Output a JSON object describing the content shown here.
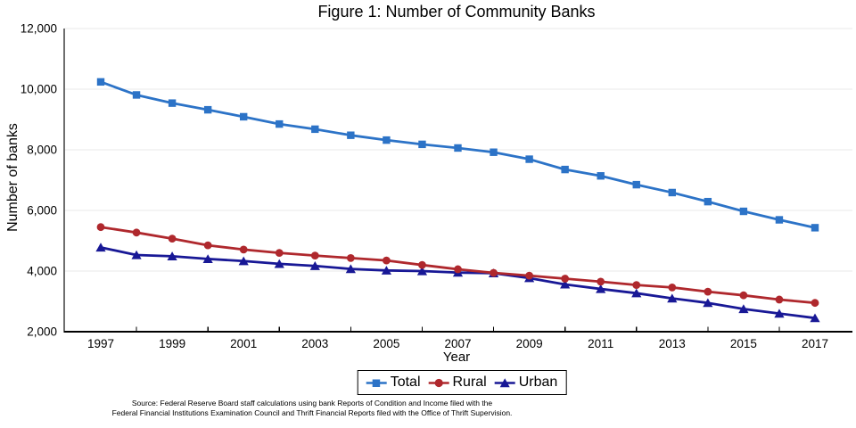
{
  "figure": {
    "source_line1": "Source: Federal Reserve Board staff calculations using bank Reports of Condition and Income filed with the",
    "source_line2": "Federal Financial Institutions Examination Council and Thrift Financial Reports filed with the Office of Thrift Supervision."
  },
  "chart_data": {
    "type": "line",
    "title": "Figure 1: Number of Community Banks",
    "xlabel": "Year",
    "ylabel": "Number of banks",
    "ylim": [
      2000,
      12000
    ],
    "xlim": [
      1996,
      2018
    ],
    "grid": "horizontal",
    "legend_position": "bottom",
    "x": [
      1997,
      1998,
      1999,
      2000,
      2001,
      2002,
      2003,
      2004,
      2005,
      2006,
      2007,
      2008,
      2009,
      2010,
      2011,
      2012,
      2013,
      2014,
      2015,
      2016,
      2017
    ],
    "x_tick_values": [
      1997,
      1999,
      2001,
      2003,
      2005,
      2007,
      2009,
      2011,
      2013,
      2015,
      2017
    ],
    "x_tick_labels": [
      "1997",
      "1999",
      "2001",
      "2003",
      "2005",
      "2007",
      "2009",
      "2011",
      "2013",
      "2015",
      "2017"
    ],
    "x_minor_tick_values": [
      1998,
      2000,
      2002,
      2004,
      2006,
      2008,
      2010,
      2012,
      2014,
      2016
    ],
    "y_tick_values": [
      2000,
      4000,
      6000,
      8000,
      10000,
      12000
    ],
    "y_tick_labels": [
      "2,000",
      "4,000",
      "6,000",
      "8,000",
      "10,000",
      "12,000"
    ],
    "gridline_values": [
      4000,
      6000,
      8000,
      10000,
      12000
    ],
    "series": [
      {
        "name": "Total",
        "marker": "square",
        "color": "#2C73C7",
        "values": [
          10240,
          9810,
          9540,
          9320,
          9090,
          8850,
          8680,
          8480,
          8320,
          8180,
          8060,
          7920,
          7690,
          7350,
          7140,
          6850,
          6590,
          6290,
          5970,
          5690,
          5430
        ]
      },
      {
        "name": "Rural",
        "marker": "circle",
        "color": "#AF282D",
        "values": [
          5450,
          5270,
          5070,
          4850,
          4710,
          4600,
          4510,
          4430,
          4350,
          4200,
          4060,
          3940,
          3850,
          3750,
          3650,
          3540,
          3460,
          3320,
          3200,
          3060,
          2950
        ]
      },
      {
        "name": "Urban",
        "marker": "triangle",
        "color": "#181896",
        "values": [
          4780,
          4530,
          4490,
          4400,
          4330,
          4240,
          4170,
          4070,
          4020,
          4000,
          3950,
          3930,
          3770,
          3560,
          3410,
          3270,
          3100,
          2950,
          2750,
          2600,
          2450
        ]
      }
    ]
  }
}
